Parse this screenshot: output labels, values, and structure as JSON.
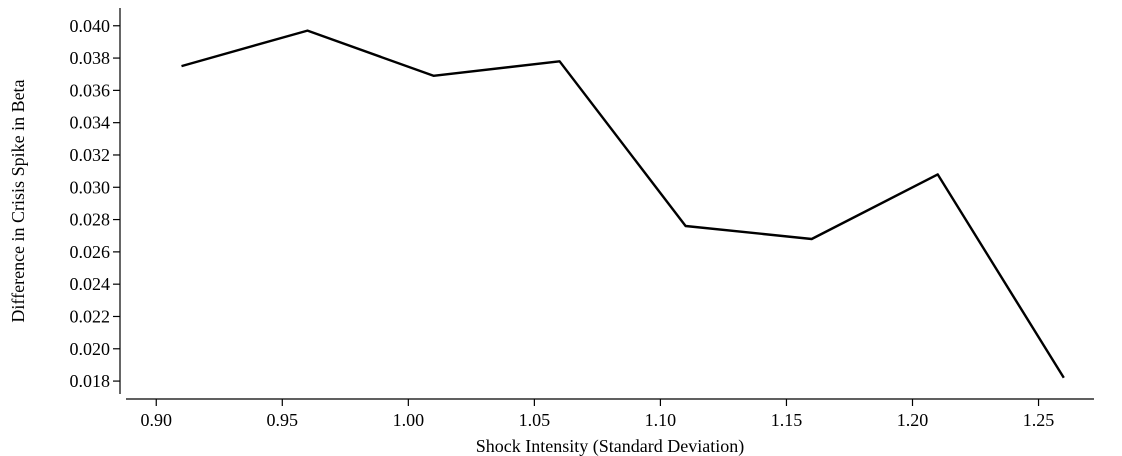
{
  "chart_data": {
    "type": "line",
    "title": "",
    "xlabel": "Shock Intensity (Standard Deviation)",
    "ylabel": "Difference in Crisis Spike in Beta",
    "xlim": [
      0.888,
      1.272
    ],
    "ylim": [
      0.0172,
      0.0411
    ],
    "xticks": [
      0.9,
      0.95,
      1.0,
      1.05,
      1.1,
      1.15,
      1.2,
      1.25
    ],
    "xtick_labels": [
      "0.90",
      "0.95",
      "1.00",
      "1.05",
      "1.10",
      "1.15",
      "1.20",
      "1.25"
    ],
    "yticks": [
      0.018,
      0.02,
      0.022,
      0.024,
      0.026,
      0.028,
      0.03,
      0.032,
      0.034,
      0.036,
      0.038,
      0.04
    ],
    "ytick_labels": [
      "0.018",
      "0.020",
      "0.022",
      "0.024",
      "0.026",
      "0.028",
      "0.030",
      "0.032",
      "0.034",
      "0.036",
      "0.038",
      "0.040"
    ],
    "grid": false,
    "series": [
      {
        "x": [
          0.91,
          0.96,
          1.01,
          1.06,
          1.11,
          1.16,
          1.21,
          1.26
        ],
        "values": [
          0.0375,
          0.0397,
          0.0369,
          0.0378,
          0.0276,
          0.0268,
          0.0308,
          0.0182
        ],
        "color": "#000000"
      }
    ]
  }
}
